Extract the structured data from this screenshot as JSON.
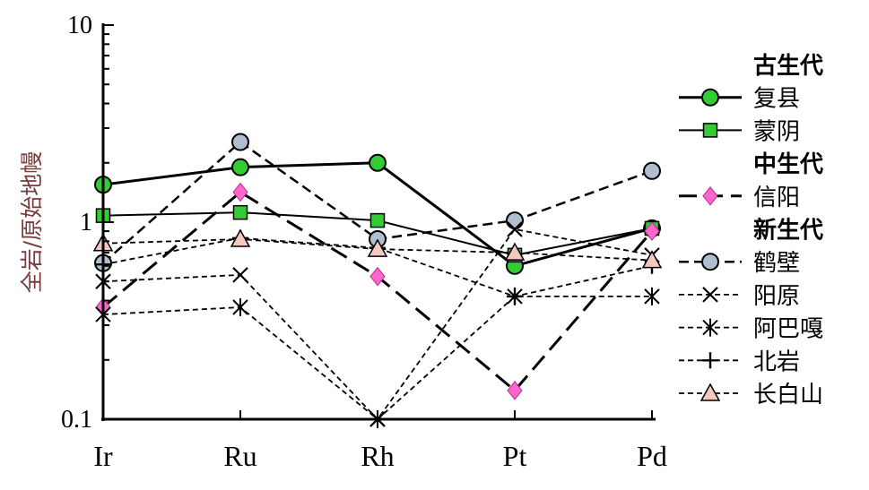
{
  "chart_data": {
    "type": "line",
    "ylabel": "全岩/原始地幔",
    "yscale": "log",
    "ylim": [
      0.1,
      10
    ],
    "yticks": [
      "10",
      "1",
      "0.1"
    ],
    "categories": [
      "Ir",
      "Ru",
      "Rh",
      "Pt",
      "Pd"
    ],
    "legend_position": "right",
    "groups": [
      "古生代",
      "中生代",
      "新生代"
    ],
    "series": [
      {
        "name": "复县",
        "group": 0,
        "values": [
          1.55,
          1.9,
          2.0,
          0.6,
          0.93
        ],
        "marker": "circle",
        "fill": "#33cc33",
        "dash": "solid",
        "width": 3
      },
      {
        "name": "蒙阴",
        "group": 0,
        "values": [
          1.08,
          1.12,
          1.02,
          0.68,
          0.93
        ],
        "marker": "square",
        "fill": "#33cc33",
        "dash": "solid",
        "width": 2
      },
      {
        "name": "信阳",
        "group": 1,
        "values": [
          0.37,
          1.42,
          0.53,
          0.14,
          0.9
        ],
        "marker": "diamond",
        "fill": "#ff66cc",
        "dash": "longdash",
        "width": 3
      },
      {
        "name": "鹤壁",
        "group": 2,
        "values": [
          0.62,
          2.55,
          0.82,
          1.02,
          1.82
        ],
        "marker": "circle",
        "fill": "#b0bfd0",
        "dash": "dash",
        "width": 2.5
      },
      {
        "name": "阳原",
        "group": 2,
        "values": [
          0.5,
          0.54,
          0.1,
          0.92,
          0.68
        ],
        "marker": "x",
        "fill": "#000000",
        "dash": "shortdash",
        "width": 1.8
      },
      {
        "name": "阿巴嘎",
        "group": 2,
        "values": [
          0.34,
          0.37,
          0.1,
          0.42,
          0.42
        ],
        "marker": "asterisk",
        "fill": "#000000",
        "dash": "shortdash",
        "width": 1.8
      },
      {
        "name": "北岩",
        "group": 2,
        "values": [
          0.61,
          0.83,
          0.74,
          0.42,
          0.6
        ],
        "marker": "plus",
        "fill": "#000000",
        "dash": "shortdash",
        "width": 1.8
      },
      {
        "name": "长白山",
        "group": 2,
        "values": [
          0.78,
          0.82,
          0.73,
          0.7,
          0.64
        ],
        "marker": "triangle",
        "fill": "#f4c8c0",
        "dash": "shortdash",
        "width": 1.8
      }
    ]
  }
}
